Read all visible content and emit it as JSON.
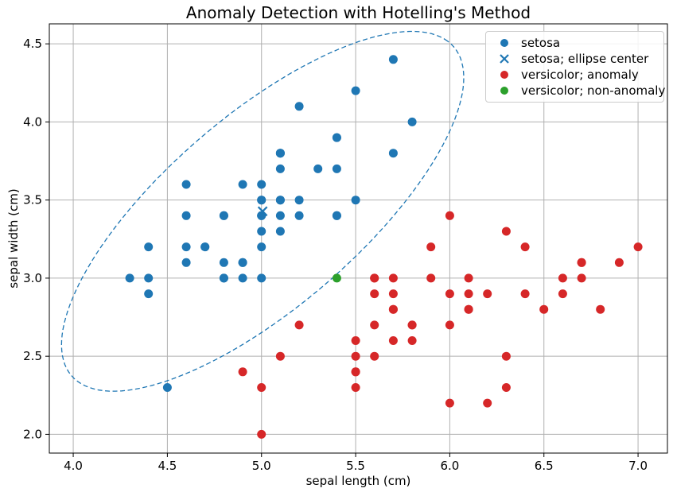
{
  "chart_data": {
    "type": "scatter",
    "title": "Anomaly Detection with Hotelling's Method",
    "xlabel": "sepal length (cm)",
    "ylabel": "sepal width (cm)",
    "xlim": [
      3.873,
      7.156
    ],
    "ylim": [
      1.88,
      4.628
    ],
    "xticks": {
      "values": [
        4.0,
        4.5,
        5.0,
        5.5,
        6.0,
        6.5,
        7.0
      ],
      "labels": [
        "4.0",
        "4.5",
        "5.0",
        "5.5",
        "6.0",
        "6.5",
        "7.0"
      ]
    },
    "yticks": {
      "values": [
        2.0,
        2.5,
        3.0,
        3.5,
        4.0,
        4.5
      ],
      "labels": [
        "2.0",
        "2.5",
        "3.0",
        "3.5",
        "4.0",
        "4.5"
      ]
    },
    "grid": true,
    "grid_color": "#b0b0b0",
    "legend": {
      "position": "upper right"
    },
    "series": [
      {
        "name": "setosa",
        "marker": "circle",
        "color": "#1f77b4",
        "points": [
          [
            5.1,
            3.5
          ],
          [
            4.9,
            3.0
          ],
          [
            4.7,
            3.2
          ],
          [
            4.6,
            3.1
          ],
          [
            5.0,
            3.6
          ],
          [
            5.4,
            3.9
          ],
          [
            4.6,
            3.4
          ],
          [
            5.0,
            3.4
          ],
          [
            4.4,
            2.9
          ],
          [
            4.9,
            3.1
          ],
          [
            5.4,
            3.7
          ],
          [
            4.8,
            3.4
          ],
          [
            4.8,
            3.0
          ],
          [
            4.3,
            3.0
          ],
          [
            5.8,
            4.0
          ],
          [
            5.7,
            4.4
          ],
          [
            5.4,
            3.9
          ],
          [
            5.1,
            3.5
          ],
          [
            5.7,
            3.8
          ],
          [
            5.1,
            3.8
          ],
          [
            5.4,
            3.4
          ],
          [
            5.1,
            3.7
          ],
          [
            4.6,
            3.6
          ],
          [
            5.1,
            3.3
          ],
          [
            4.8,
            3.4
          ],
          [
            5.0,
            3.0
          ],
          [
            5.0,
            3.4
          ],
          [
            5.2,
            3.5
          ],
          [
            5.2,
            3.4
          ],
          [
            4.7,
            3.2
          ],
          [
            4.8,
            3.1
          ],
          [
            5.4,
            3.4
          ],
          [
            5.2,
            4.1
          ],
          [
            5.5,
            4.2
          ],
          [
            4.9,
            3.1
          ],
          [
            5.0,
            3.2
          ],
          [
            5.5,
            3.5
          ],
          [
            4.9,
            3.6
          ],
          [
            4.4,
            3.0
          ],
          [
            5.1,
            3.4
          ],
          [
            5.0,
            3.5
          ],
          [
            4.5,
            2.3
          ],
          [
            4.4,
            3.2
          ],
          [
            5.0,
            3.5
          ],
          [
            5.1,
            3.8
          ],
          [
            4.8,
            3.0
          ],
          [
            5.1,
            3.8
          ],
          [
            4.6,
            3.2
          ],
          [
            5.3,
            3.7
          ],
          [
            5.0,
            3.3
          ]
        ]
      },
      {
        "name": "setosa; ellipse center",
        "marker": "x",
        "color": "#1f77b4",
        "points": [
          [
            5.006,
            3.428
          ]
        ]
      },
      {
        "name": "versicolor; anomaly",
        "marker": "circle",
        "color": "#d62728",
        "points": [
          [
            7.0,
            3.2
          ],
          [
            6.4,
            3.2
          ],
          [
            6.9,
            3.1
          ],
          [
            5.5,
            2.3
          ],
          [
            6.5,
            2.8
          ],
          [
            5.7,
            2.8
          ],
          [
            6.3,
            3.3
          ],
          [
            4.9,
            2.4
          ],
          [
            6.6,
            2.9
          ],
          [
            5.2,
            2.7
          ],
          [
            5.0,
            2.0
          ],
          [
            5.9,
            3.0
          ],
          [
            6.0,
            2.2
          ],
          [
            6.1,
            2.9
          ],
          [
            5.6,
            2.9
          ],
          [
            6.7,
            3.1
          ],
          [
            5.6,
            3.0
          ],
          [
            5.8,
            2.7
          ],
          [
            6.2,
            2.2
          ],
          [
            5.6,
            2.5
          ],
          [
            5.9,
            3.2
          ],
          [
            6.1,
            2.8
          ],
          [
            6.3,
            2.5
          ],
          [
            6.1,
            2.8
          ],
          [
            6.4,
            2.9
          ],
          [
            6.6,
            3.0
          ],
          [
            6.8,
            2.8
          ],
          [
            6.7,
            3.0
          ],
          [
            6.0,
            2.9
          ],
          [
            5.7,
            2.6
          ],
          [
            5.5,
            2.4
          ],
          [
            5.5,
            2.4
          ],
          [
            5.8,
            2.7
          ],
          [
            6.0,
            2.7
          ],
          [
            6.0,
            3.4
          ],
          [
            6.7,
            3.1
          ],
          [
            6.3,
            2.3
          ],
          [
            5.6,
            3.0
          ],
          [
            5.5,
            2.5
          ],
          [
            5.5,
            2.6
          ],
          [
            6.1,
            3.0
          ],
          [
            5.8,
            2.6
          ],
          [
            5.0,
            2.3
          ],
          [
            5.6,
            2.7
          ],
          [
            5.7,
            3.0
          ],
          [
            5.7,
            2.9
          ],
          [
            6.2,
            2.9
          ],
          [
            5.1,
            2.5
          ],
          [
            5.7,
            2.8
          ]
        ]
      },
      {
        "name": "versicolor; non-anomaly",
        "marker": "circle",
        "color": "#2ca02c",
        "points": [
          [
            5.4,
            3.0
          ]
        ]
      }
    ],
    "ellipse": {
      "center": [
        5.006,
        3.428
      ],
      "semi_major": 1.467,
      "semi_minor": 0.562,
      "angle_deg": 47.9,
      "linestyle": "dashed",
      "color": "#1f77b4"
    }
  }
}
